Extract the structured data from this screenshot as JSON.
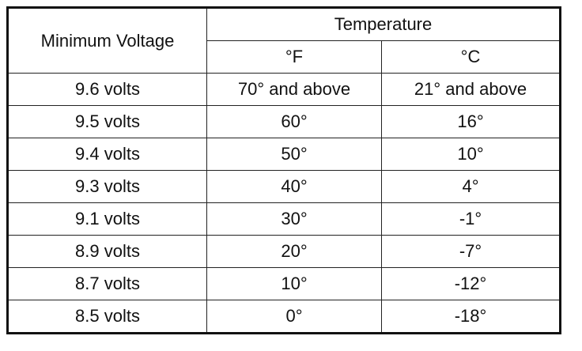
{
  "table": {
    "header": {
      "voltage": "Minimum Voltage",
      "temperature": "Temperature",
      "units": [
        "°F",
        "°C"
      ]
    },
    "rows": [
      [
        "9.6 volts",
        "70° and above",
        "21° and above"
      ],
      [
        "9.5 volts",
        "60°",
        "16°"
      ],
      [
        "9.4 volts",
        "50°",
        "10°"
      ],
      [
        "9.3 volts",
        "40°",
        "4°"
      ],
      [
        "9.1 volts",
        "30°",
        "-1°"
      ],
      [
        "8.9 volts",
        "20°",
        "-7°"
      ],
      [
        "8.7 volts",
        "10°",
        "-12°"
      ],
      [
        "8.5 volts",
        "0°",
        "-18°"
      ]
    ]
  }
}
